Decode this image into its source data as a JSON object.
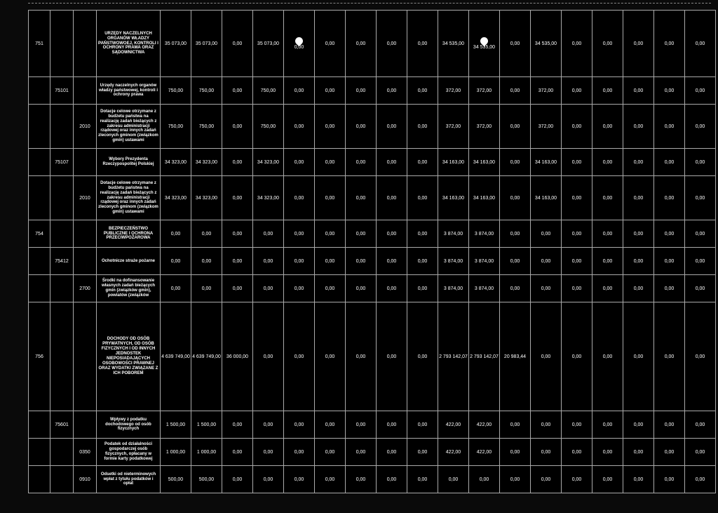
{
  "rows": [
    {
      "cls": "tall",
      "c0": "751",
      "c1": "",
      "c2": "",
      "label": "URZĘDY NACZELNYCH ORGANÓW WŁADZY PAŃSTWOWOEJ, KONTROLI I OCHRONY PRAWA ORAZ SĄDOWNICTWA",
      "v": [
        "35 073,00",
        "35 073,00",
        "0,00",
        "35 073,00",
        "0,00",
        "0,00",
        "0,00",
        "0,00",
        "0,00",
        "34 535,00",
        "34 535,00",
        "0,00",
        "34 535,00",
        "0,00",
        "0,00",
        "0,00",
        "0,00",
        "0,00"
      ],
      "icons": [
        4,
        10
      ]
    },
    {
      "cls": "short",
      "c0": "",
      "c1": "75101",
      "c2": "",
      "label": "Urzędy naczelnych organów władzy państwowej, kontroli i ochrony prawa",
      "v": [
        "750,00",
        "750,00",
        "0,00",
        "750,00",
        "0,00",
        "0,00",
        "0,00",
        "0,00",
        "0,00",
        "372,00",
        "372,00",
        "0,00",
        "372,00",
        "0,00",
        "0,00",
        "0,00",
        "0,00",
        "0,00"
      ]
    },
    {
      "cls": "med",
      "c0": "",
      "c1": "",
      "c2": "2010",
      "label": "Dotacje celowe otrzymane z budżetu państwa na realizację zadań bieżących z zakresu administracji rządowej oraz innych zadań zleconych gminom (związkom gmin) ustawami",
      "v": [
        "750,00",
        "750,00",
        "0,00",
        "750,00",
        "0,00",
        "0,00",
        "0,00",
        "0,00",
        "0,00",
        "372,00",
        "372,00",
        "0,00",
        "372,00",
        "0,00",
        "0,00",
        "0,00",
        "0,00",
        "0,00"
      ]
    },
    {
      "cls": "short",
      "c0": "",
      "c1": "75107",
      "c2": "",
      "label": "Wybory Prezydenta Rzeczypospolitej Polskiej",
      "v": [
        "34 323,00",
        "34 323,00",
        "0,00",
        "34 323,00",
        "0,00",
        "0,00",
        "0,00",
        "0,00",
        "0,00",
        "34 163,00",
        "34 163,00",
        "0,00",
        "34 163,00",
        "0,00",
        "0,00",
        "0,00",
        "0,00",
        "0,00"
      ]
    },
    {
      "cls": "med",
      "c0": "",
      "c1": "",
      "c2": "2010",
      "label": "Dotacje celowe otrzymane z budżetu państwa na realizację zadań bieżących z zakresu administracji rządowej oraz innych zadań zleconych gminom (związkom gmin) ustawami",
      "v": [
        "34 323,00",
        "34 323,00",
        "0,00",
        "34 323,00",
        "0,00",
        "0,00",
        "0,00",
        "0,00",
        "0,00",
        "34 163,00",
        "34 163,00",
        "0,00",
        "34 163,00",
        "0,00",
        "0,00",
        "0,00",
        "0,00",
        "0,00"
      ]
    },
    {
      "cls": "short",
      "c0": "754",
      "c1": "",
      "c2": "",
      "label": "BEZPIECZEŃSTWO PUBLICZNE I OCHRONA PRZECIWPOŻAROWA",
      "v": [
        "0,00",
        "0,00",
        "0,00",
        "0,00",
        "0,00",
        "0,00",
        "0,00",
        "0,00",
        "0,00",
        "3 874,00",
        "3 874,00",
        "0,00",
        "0,00",
        "0,00",
        "0,00",
        "0,00",
        "0,00",
        "0,00"
      ]
    },
    {
      "cls": "short",
      "c0": "",
      "c1": "75412",
      "c2": "",
      "label": "Ochotnicze straże pożarne",
      "v": [
        "0,00",
        "0,00",
        "0,00",
        "0,00",
        "0,00",
        "0,00",
        "0,00",
        "0,00",
        "0,00",
        "3 874,00",
        "3 874,00",
        "0,00",
        "0,00",
        "0,00",
        "0,00",
        "0,00",
        "0,00",
        "0,00"
      ]
    },
    {
      "cls": "short",
      "c0": "",
      "c1": "",
      "c2": "2700",
      "label": "Środki na dofinansowanie własnych zadań bieżących gmin (związków gmin), powiatów (związków",
      "v": [
        "0,00",
        "0,00",
        "0,00",
        "0,00",
        "0,00",
        "0,00",
        "0,00",
        "0,00",
        "0,00",
        "3 874,00",
        "3 874,00",
        "0,00",
        "0,00",
        "0,00",
        "0,00",
        "0,00",
        "0,00",
        "0,00"
      ]
    },
    {
      "cls": "xtall",
      "c0": "756",
      "c1": "",
      "c2": "",
      "label": "DOCHODY OD OSÓB PRYWATNYCH, OD OSÓB FIZYCZNYCH I OD INNYCH JEDNOSTEK NIEPOSIADAJĄCYCH OSOBOWOŚCI PRAWNEJ ORAZ WYDATKI ZWIĄZANE Z ICH POBOREM",
      "v": [
        "4 639 749,00",
        "4 639 749,00",
        "36 000,00",
        "0,00",
        "0,00",
        "0,00",
        "0,00",
        "0,00",
        "0,00",
        "2 793 142,07",
        "2 793 142,07",
        "20 983,44",
        "0,00",
        "0,00",
        "0,00",
        "0,00",
        "0,00",
        "0,00"
      ]
    },
    {
      "cls": "short",
      "c0": "",
      "c1": "75601",
      "c2": "",
      "label": "Wpływy z podatku dochodowego od osób fizycznych",
      "v": [
        "1 500,00",
        "1 500,00",
        "0,00",
        "0,00",
        "0,00",
        "0,00",
        "0,00",
        "0,00",
        "0,00",
        "422,00",
        "422,00",
        "0,00",
        "0,00",
        "0,00",
        "0,00",
        "0,00",
        "0,00",
        "0,00"
      ]
    },
    {
      "cls": "short",
      "c0": "",
      "c1": "",
      "c2": "0350",
      "label": "Podatek od działalności gospodarczej osób fizycznych, opłacany w formie karty podatkowej",
      "v": [
        "1 000,00",
        "1 000,00",
        "0,00",
        "0,00",
        "0,00",
        "0,00",
        "0,00",
        "0,00",
        "0,00",
        "422,00",
        "422,00",
        "0,00",
        "0,00",
        "0,00",
        "0,00",
        "0,00",
        "0,00",
        "0,00"
      ]
    },
    {
      "cls": "short",
      "c0": "",
      "c1": "",
      "c2": "0910",
      "label": "Odsetki od nieterminowych wpłat z tytułu podatków i opłat",
      "v": [
        "500,00",
        "500,00",
        "0,00",
        "0,00",
        "0,00",
        "0,00",
        "0,00",
        "0,00",
        "0,00",
        "0,00",
        "0,00",
        "0,00",
        "0,00",
        "0,00",
        "0,00",
        "0,00",
        "0,00",
        "0,00"
      ]
    }
  ]
}
